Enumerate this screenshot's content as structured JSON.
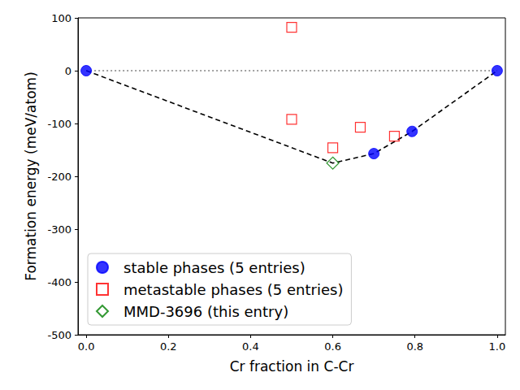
{
  "chart_data": {
    "type": "scatter",
    "xlabel": "Cr fraction in C-Cr",
    "ylabel": "Formation energy (meV/atom)",
    "xlim": [
      -0.02,
      1.02
    ],
    "xticks": [
      {
        "value": 0,
        "label": "0.0"
      },
      0.2,
      0.4,
      0.6,
      0.8,
      {
        "value": 1,
        "label": "1.0"
      }
    ],
    "ylim": [
      -500,
      100
    ],
    "yticks": [
      -500,
      -400,
      -300,
      -200,
      -100,
      0,
      100
    ],
    "grid": false,
    "legend": "lower left",
    "series": [
      {
        "type": "line",
        "line_style": "dotted",
        "color": "#808080",
        "x": [
          0,
          1
        ],
        "values": [
          0,
          0
        ]
      },
      {
        "type": "line",
        "line_style": "dashed",
        "color": "#000000",
        "x": [
          0,
          0.6,
          0.7,
          0.793,
          1
        ],
        "values": [
          0,
          -175,
          -157,
          -115,
          0
        ]
      },
      {
        "type": "scatter",
        "name": "stable phases (5 entries)",
        "marker": "circle",
        "color": "#0000ff",
        "x": [
          0,
          0.7,
          0.793,
          1
        ],
        "values": [
          0,
          -157,
          -115,
          0
        ]
      },
      {
        "type": "scatter",
        "name": "metastable phases (5 entries)",
        "marker": "open_square",
        "color": "#ff0000",
        "x": [
          0.5,
          0.5,
          0.6,
          0.667,
          0.75
        ],
        "values": [
          82,
          -92,
          -146,
          -107,
          -124
        ]
      },
      {
        "type": "scatter",
        "name": "MMD-3696 (this entry)",
        "marker": "open_diamond",
        "color": "#008000",
        "x": [
          0.6
        ],
        "values": [
          -175
        ]
      }
    ]
  }
}
